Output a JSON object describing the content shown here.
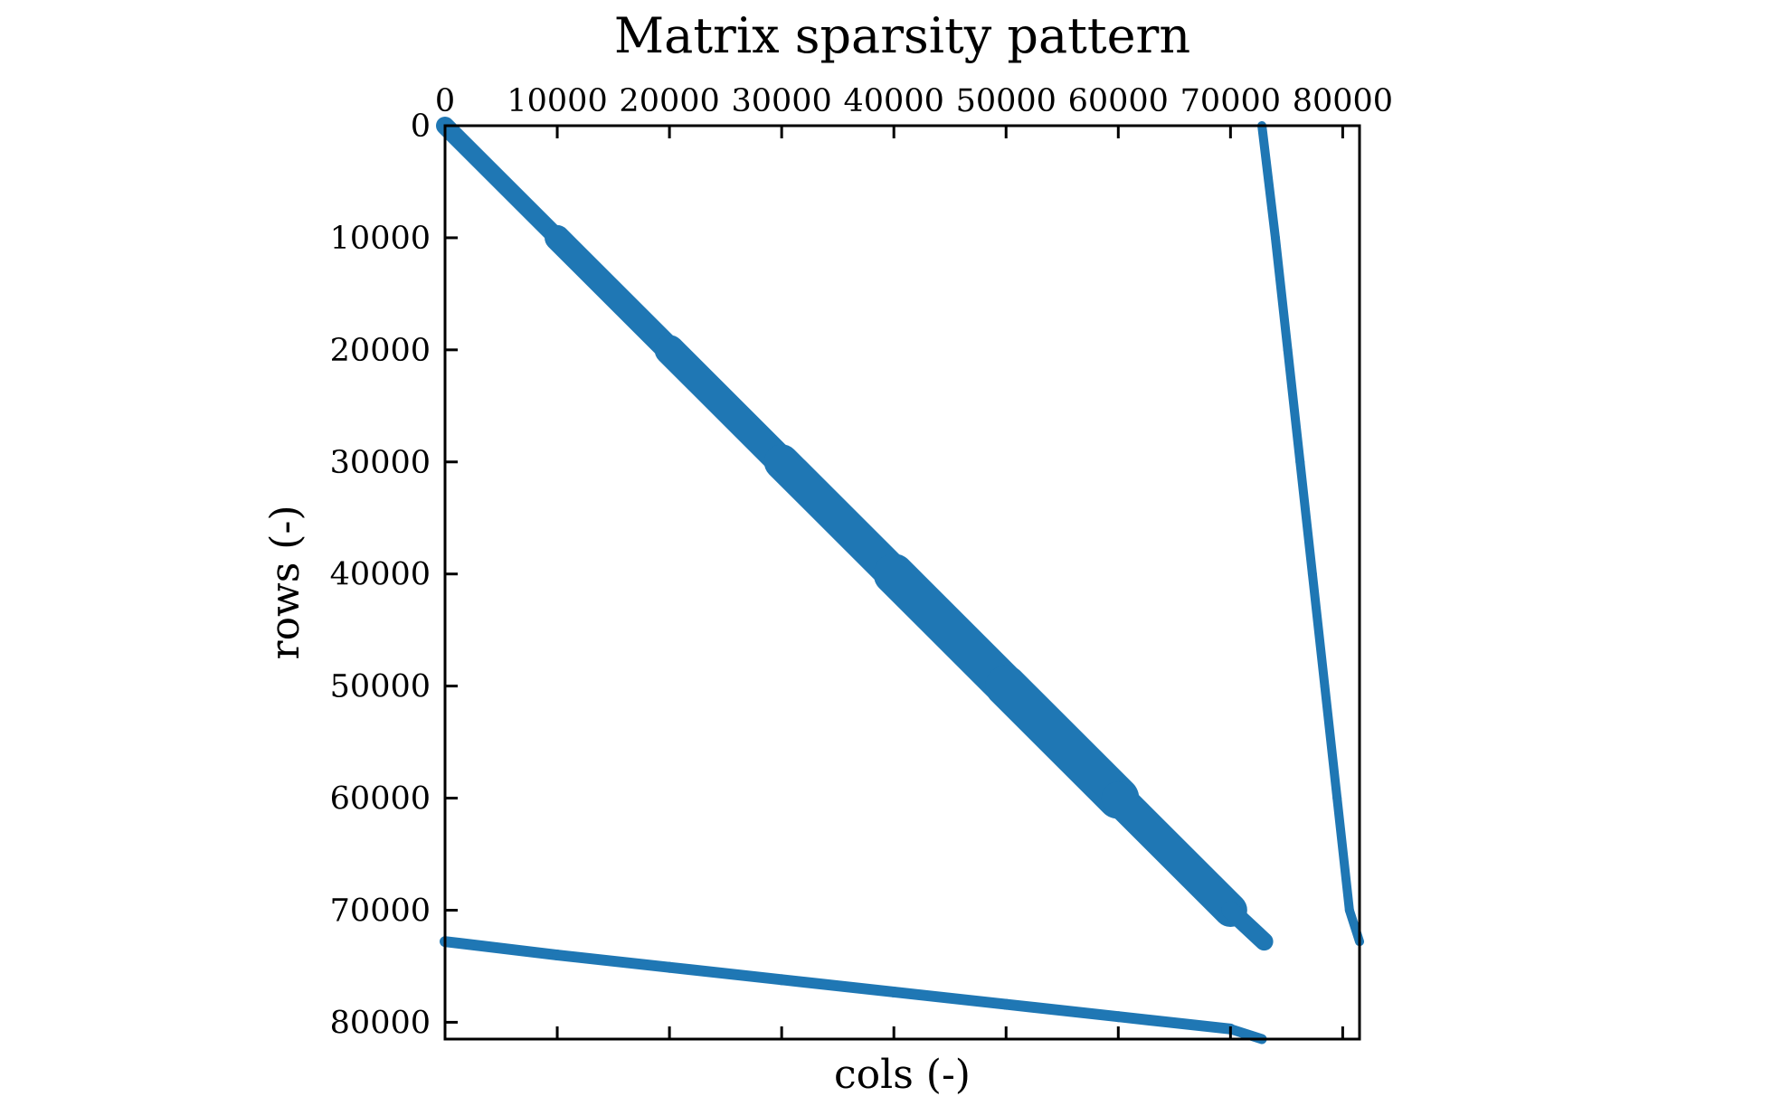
{
  "chart_data": {
    "type": "scatter",
    "title": "Matrix sparsity pattern",
    "xlabel": "cols (-)",
    "ylabel": "rows (-)",
    "xlim": [
      0,
      81500
    ],
    "ylim": [
      81500,
      0
    ],
    "x_axis_position": "top",
    "y_inverted": true,
    "grid": false,
    "legend": "none",
    "marker_color": "#1f77b4",
    "xticks": [
      0,
      10000,
      20000,
      30000,
      40000,
      50000,
      60000,
      70000,
      80000
    ],
    "xtick_labels": [
      "0",
      "10000",
      "20000",
      "30000",
      "40000",
      "50000",
      "60000",
      "70000",
      "80000"
    ],
    "yticks": [
      0,
      10000,
      20000,
      30000,
      40000,
      50000,
      60000,
      70000,
      80000
    ],
    "ytick_labels": [
      "0",
      "10000",
      "20000",
      "30000",
      "40000",
      "50000",
      "60000",
      "70000",
      "80000"
    ],
    "series": [
      {
        "description": "main diagonal band",
        "points": [
          [
            0,
            0
          ],
          [
            10000,
            10000
          ],
          [
            20000,
            20000
          ],
          [
            30000,
            30000
          ],
          [
            40000,
            40000
          ],
          [
            50000,
            50000
          ],
          [
            60000,
            60000
          ],
          [
            70000,
            70000
          ],
          [
            73000,
            72800
          ]
        ]
      },
      {
        "description": "upper-right off-diagonal band",
        "points": [
          [
            72800,
            0
          ],
          [
            74000,
            10000
          ],
          [
            75100,
            20000
          ],
          [
            76200,
            30000
          ],
          [
            77300,
            40000
          ],
          [
            78400,
            50000
          ],
          [
            79500,
            60000
          ],
          [
            80600,
            70000
          ],
          [
            81500,
            72800
          ]
        ]
      },
      {
        "description": "lower-left off-diagonal band",
        "points": [
          [
            0,
            72800
          ],
          [
            10000,
            74000
          ],
          [
            20000,
            75100
          ],
          [
            30000,
            76200
          ],
          [
            40000,
            77300
          ],
          [
            50000,
            78400
          ],
          [
            60000,
            79500
          ],
          [
            70000,
            80600
          ],
          [
            72800,
            81500
          ]
        ]
      }
    ]
  }
}
